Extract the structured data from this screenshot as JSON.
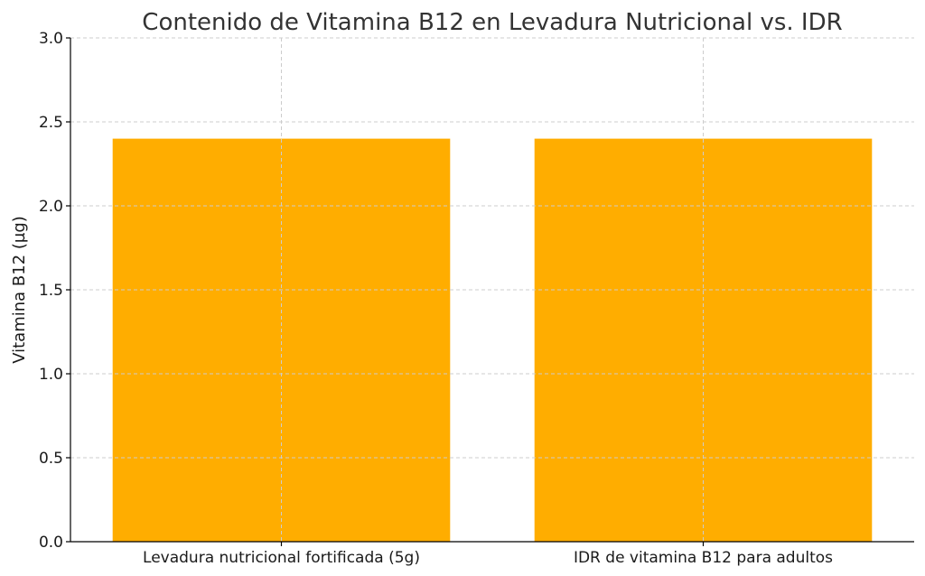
{
  "chart_data": {
    "type": "bar",
    "title": "Contenido de Vitamina B12 en Levadura Nutricional vs. IDR",
    "xlabel": "",
    "ylabel": "Vitamina B12 (µg)",
    "categories": [
      "Levadura nutricional fortificada (5g)",
      "IDR de vitamina B12 para adultos"
    ],
    "values": [
      2.4,
      2.4
    ],
    "ylim": [
      0,
      3.0
    ],
    "yticks": [
      "0.0",
      "0.5",
      "1.0",
      "1.5",
      "2.0",
      "2.5",
      "3.0"
    ],
    "grid": true,
    "bar_color": "#FFAD00",
    "grid_color": "#cccccc"
  }
}
